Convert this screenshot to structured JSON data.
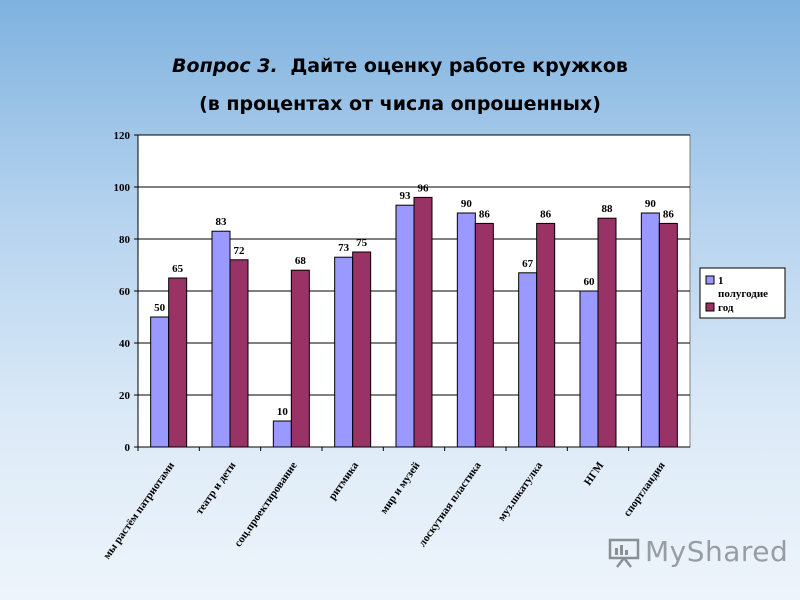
{
  "chart_data": {
    "type": "bar",
    "title_prefix": "Вопрос 3.",
    "title": "Дайте оценку работе кружков",
    "subtitle": "(в процентах от числа опрошенных)",
    "categories": [
      "мы растём патриотами",
      "театр и дети",
      "соц.проектирование",
      "ритмика",
      "мир и музей",
      "лоскутная пластика",
      "муз.шкатулка",
      "НГМ",
      "спортландия"
    ],
    "series": [
      {
        "name": "1 полугодие",
        "color": "#9999ff",
        "values": [
          50,
          83,
          10,
          73,
          93,
          90,
          67,
          60,
          90
        ]
      },
      {
        "name": "год",
        "color": "#993366",
        "values": [
          65,
          72,
          68,
          75,
          96,
          86,
          86,
          88,
          86
        ]
      }
    ],
    "ylim": [
      0,
      120
    ],
    "yticks": [
      0,
      20,
      40,
      60,
      80,
      100,
      120
    ],
    "grid": true,
    "legend_position": "right"
  },
  "watermark": {
    "text": "MyShared"
  }
}
